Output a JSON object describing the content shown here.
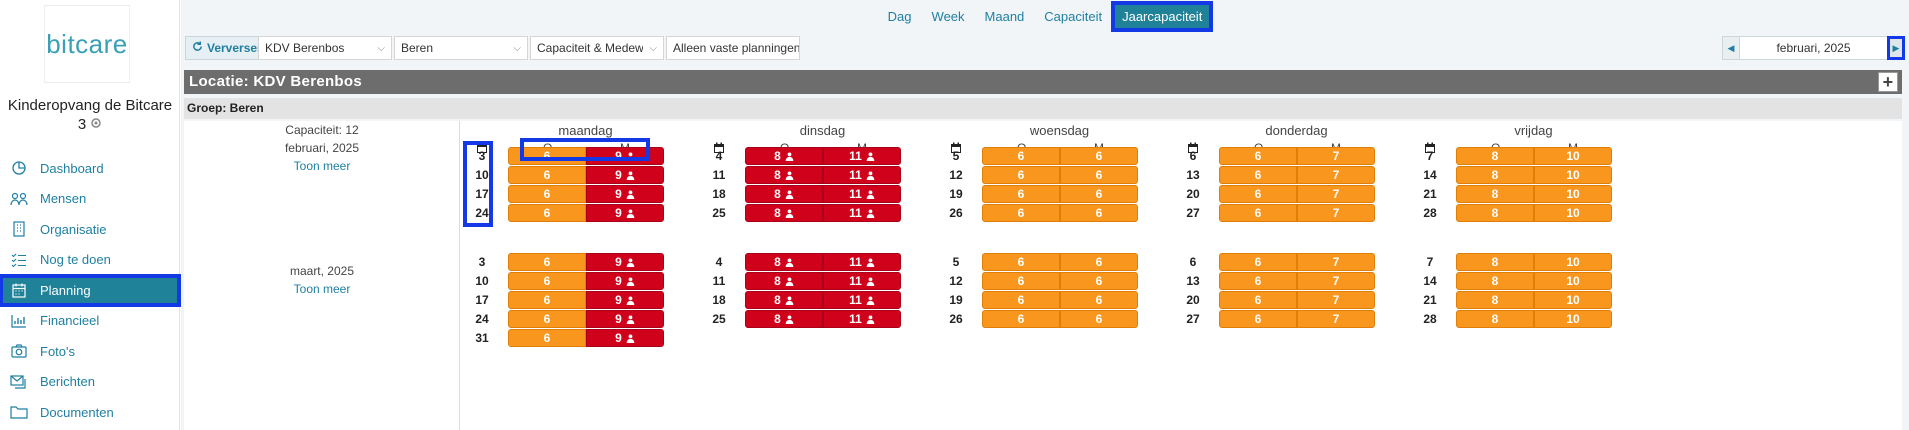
{
  "sidebar": {
    "logo": "bitcare",
    "org_name_line1": "Kinderopvang de Bitcare",
    "org_name_line2": "3",
    "items": [
      {
        "label": "Dashboard",
        "icon": "dashboard-icon"
      },
      {
        "label": "Mensen",
        "icon": "people-icon"
      },
      {
        "label": "Organisatie",
        "icon": "building-icon"
      },
      {
        "label": "Nog te doen",
        "icon": "checklist-icon"
      },
      {
        "label": "Planning",
        "icon": "calendar-icon",
        "active": true
      },
      {
        "label": "Financieel",
        "icon": "chart-icon"
      },
      {
        "label": "Foto's",
        "icon": "camera-icon"
      },
      {
        "label": "Berichten",
        "icon": "messages-icon"
      },
      {
        "label": "Documenten",
        "icon": "folder-icon"
      }
    ]
  },
  "topnav": {
    "tabs": [
      "Dag",
      "Week",
      "Maand",
      "Capaciteit",
      "Jaarcapaciteit"
    ],
    "active": "Jaarcapaciteit"
  },
  "toolbar": {
    "refresh_label": "Verversen",
    "location_select": "KDV Berenbos",
    "group_select": "Beren",
    "view_select": "Capaciteit & Medewerkers",
    "filter_select": "Alleen vaste planningen",
    "current_month": "februari, 2025"
  },
  "location_bar": "Locatie: KDV Berenbos",
  "group_bar": "Groep: Beren",
  "days": [
    "maandag",
    "dinsdag",
    "woensdag",
    "donderdag",
    "vrijdag"
  ],
  "sub_headers": {
    "o": "O",
    "m": "M"
  },
  "months": [
    {
      "capacity_label": "Capaciteit: 12",
      "month_label": "februari, 2025",
      "toon_meer": "Toon meer",
      "weeks": [
        [
          [
            "3",
            "6",
            "9"
          ],
          [
            "4",
            "8",
            "11"
          ],
          [
            "5",
            "6",
            "6"
          ],
          [
            "6",
            "6",
            "7"
          ],
          [
            "7",
            "8",
            "10"
          ]
        ],
        [
          [
            "10",
            "6",
            "9"
          ],
          [
            "11",
            "8",
            "11"
          ],
          [
            "12",
            "6",
            "6"
          ],
          [
            "13",
            "6",
            "7"
          ],
          [
            "14",
            "8",
            "10"
          ]
        ],
        [
          [
            "17",
            "6",
            "9"
          ],
          [
            "18",
            "8",
            "11"
          ],
          [
            "19",
            "6",
            "6"
          ],
          [
            "20",
            "6",
            "7"
          ],
          [
            "21",
            "8",
            "10"
          ]
        ],
        [
          [
            "24",
            "6",
            "9"
          ],
          [
            "25",
            "8",
            "11"
          ],
          [
            "26",
            "6",
            "6"
          ],
          [
            "27",
            "6",
            "7"
          ],
          [
            "28",
            "8",
            "10"
          ]
        ]
      ]
    },
    {
      "capacity_label": "",
      "month_label": "maart, 2025",
      "toon_meer": "Toon meer",
      "weeks": [
        [
          [
            "3",
            "6",
            "9"
          ],
          [
            "4",
            "8",
            "11"
          ],
          [
            "5",
            "6",
            "6"
          ],
          [
            "6",
            "6",
            "7"
          ],
          [
            "7",
            "8",
            "10"
          ]
        ],
        [
          [
            "10",
            "6",
            "9"
          ],
          [
            "11",
            "8",
            "11"
          ],
          [
            "12",
            "6",
            "6"
          ],
          [
            "13",
            "6",
            "7"
          ],
          [
            "14",
            "8",
            "10"
          ]
        ],
        [
          [
            "17",
            "6",
            "9"
          ],
          [
            "18",
            "8",
            "11"
          ],
          [
            "19",
            "6",
            "6"
          ],
          [
            "20",
            "6",
            "7"
          ],
          [
            "21",
            "8",
            "10"
          ]
        ],
        [
          [
            "24",
            "6",
            "9"
          ],
          [
            "25",
            "8",
            "11"
          ],
          [
            "26",
            "6",
            "6"
          ],
          [
            "27",
            "6",
            "7"
          ],
          [
            "28",
            "8",
            "10"
          ]
        ],
        [
          [
            "31",
            "6",
            "9"
          ]
        ]
      ]
    }
  ],
  "colors": {
    "over_capacity": "#d0021b",
    "under_capacity": "#f8961e",
    "accent": "#1f8298",
    "highlight": "#1338e6"
  }
}
